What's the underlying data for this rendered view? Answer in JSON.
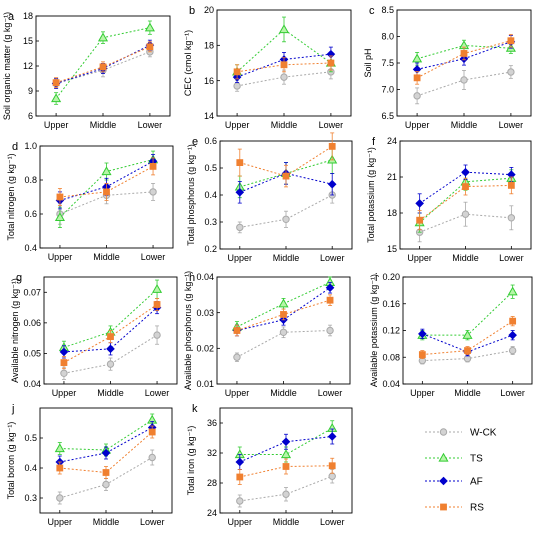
{
  "figure": {
    "categories": [
      "Upper",
      "Middle",
      "Lower"
    ],
    "legend": [
      {
        "name": "W-CK",
        "color": "#a9a9a9",
        "marker": "circle"
      },
      {
        "name": "TS",
        "color": "#33cc33",
        "marker": "triangle"
      },
      {
        "name": "AF",
        "color": "#0000cc",
        "marker": "diamond"
      },
      {
        "name": "RS",
        "color": "#f08030",
        "marker": "square"
      }
    ],
    "fill_colors": {
      "W-CK": "#d3d3d3",
      "TS": "#b6f5a8",
      "AF": "#0000cc",
      "RS": "#f08030"
    }
  },
  "chart_data": [
    {
      "type": "line",
      "panel": "a",
      "ylabel": "Soil organic matter (g kg⁻¹)",
      "categories": [
        "Upper",
        "Middle",
        "Lower"
      ],
      "ylim": [
        6,
        18
      ],
      "yticks": [
        "6",
        "9",
        "12",
        "15",
        "18"
      ],
      "series": [
        {
          "name": "W-CK",
          "values": [
            9.9,
            11.5,
            13.7
          ],
          "err": [
            0.5,
            0.8,
            0.6
          ]
        },
        {
          "name": "TS",
          "values": [
            8.1,
            15.4,
            16.6
          ],
          "err": [
            0.7,
            0.7,
            0.8
          ]
        },
        {
          "name": "AF",
          "values": [
            9.9,
            11.7,
            14.5
          ],
          "err": [
            0.6,
            0.6,
            0.6
          ]
        },
        {
          "name": "RS",
          "values": [
            10.0,
            11.9,
            14.3
          ],
          "err": [
            0.6,
            0.6,
            0.6
          ]
        }
      ]
    },
    {
      "type": "line",
      "panel": "b",
      "ylabel": "CEC (cmol kg⁻¹)",
      "categories": [
        "Upper",
        "Middle",
        "Lower"
      ],
      "ylim": [
        14,
        20
      ],
      "yticks": [
        "14",
        "16",
        "18",
        "20"
      ],
      "series": [
        {
          "name": "W-CK",
          "values": [
            15.7,
            16.2,
            16.5
          ],
          "err": [
            0.3,
            0.4,
            0.4
          ]
        },
        {
          "name": "TS",
          "values": [
            16.5,
            18.9,
            17.0
          ],
          "err": [
            0.4,
            0.7,
            0.5
          ]
        },
        {
          "name": "AF",
          "values": [
            16.2,
            17.2,
            17.5
          ],
          "err": [
            0.3,
            0.4,
            0.4
          ]
        },
        {
          "name": "RS",
          "values": [
            16.5,
            16.9,
            17.0
          ],
          "err": [
            0.4,
            0.4,
            0.4
          ]
        }
      ]
    },
    {
      "type": "line",
      "panel": "c",
      "ylabel": "Soil pH",
      "categories": [
        "Upper",
        "Middle",
        "Lower"
      ],
      "ylim": [
        6.5,
        8.5
      ],
      "yticks": [
        "6.5",
        "7.0",
        "7.5",
        "8.0",
        "8.5"
      ],
      "series": [
        {
          "name": "W-CK",
          "values": [
            6.88,
            7.18,
            7.33
          ],
          "err": [
            0.15,
            0.18,
            0.12
          ]
        },
        {
          "name": "TS",
          "values": [
            7.58,
            7.83,
            7.78
          ],
          "err": [
            0.12,
            0.1,
            0.1
          ]
        },
        {
          "name": "AF",
          "values": [
            7.38,
            7.58,
            7.9
          ],
          "err": [
            0.12,
            0.12,
            0.12
          ]
        },
        {
          "name": "RS",
          "values": [
            7.22,
            7.68,
            7.92
          ],
          "err": [
            0.12,
            0.12,
            0.12
          ]
        }
      ]
    },
    {
      "type": "line",
      "panel": "d",
      "ylabel": "Total nitrogen (g kg⁻¹)",
      "categories": [
        "Upper",
        "Middle",
        "Lower"
      ],
      "ylim": [
        0.4,
        1.0
      ],
      "yticks": [
        "0.4",
        "0.6",
        "0.8",
        "1.0"
      ],
      "series": [
        {
          "name": "W-CK",
          "values": [
            0.6,
            0.71,
            0.73
          ],
          "err": [
            0.06,
            0.05,
            0.05
          ]
        },
        {
          "name": "TS",
          "values": [
            0.58,
            0.85,
            0.92
          ],
          "err": [
            0.06,
            0.05,
            0.05
          ]
        },
        {
          "name": "AF",
          "values": [
            0.68,
            0.76,
            0.91
          ],
          "err": [
            0.05,
            0.05,
            0.04
          ]
        },
        {
          "name": "RS",
          "values": [
            0.7,
            0.73,
            0.88
          ],
          "err": [
            0.05,
            0.05,
            0.05
          ]
        }
      ]
    },
    {
      "type": "line",
      "panel": "e",
      "ylabel": "Total phosphorus (g kg⁻¹)",
      "categories": [
        "Upper",
        "Middle",
        "Lower"
      ],
      "ylim": [
        0.2,
        0.6
      ],
      "yticks": [
        "0.2",
        "0.3",
        "0.4",
        "0.5",
        "0.6"
      ],
      "series": [
        {
          "name": "W-CK",
          "values": [
            0.28,
            0.31,
            0.4
          ],
          "err": [
            0.02,
            0.03,
            0.03
          ]
        },
        {
          "name": "TS",
          "values": [
            0.43,
            0.48,
            0.53
          ],
          "err": [
            0.04,
            0.04,
            0.05
          ]
        },
        {
          "name": "AF",
          "values": [
            0.41,
            0.48,
            0.44
          ],
          "err": [
            0.04,
            0.04,
            0.04
          ]
        },
        {
          "name": "RS",
          "values": [
            0.52,
            0.47,
            0.58
          ],
          "err": [
            0.05,
            0.04,
            0.05
          ]
        }
      ]
    },
    {
      "type": "line",
      "panel": "f",
      "ylabel": "Total potassium (g kg⁻¹)",
      "categories": [
        "Upper",
        "Middle",
        "Lower"
      ],
      "ylim": [
        15,
        24
      ],
      "yticks": [
        "15",
        "18",
        "21",
        "24"
      ],
      "series": [
        {
          "name": "W-CK",
          "values": [
            16.4,
            17.9,
            17.6
          ],
          "err": [
            0.8,
            1.0,
            1.0
          ]
        },
        {
          "name": "TS",
          "values": [
            17.2,
            20.6,
            20.9
          ],
          "err": [
            0.8,
            0.7,
            0.7
          ]
        },
        {
          "name": "AF",
          "values": [
            18.8,
            21.4,
            21.2
          ],
          "err": [
            0.8,
            0.6,
            0.6
          ]
        },
        {
          "name": "RS",
          "values": [
            17.4,
            20.2,
            20.3
          ],
          "err": [
            0.8,
            0.7,
            0.7
          ]
        }
      ]
    },
    {
      "type": "line",
      "panel": "g",
      "ylabel": "Available nitrogen (g kg⁻¹)",
      "categories": [
        "Upper",
        "Middle",
        "Lower"
      ],
      "ylim": [
        0.04,
        0.075
      ],
      "yticks": [
        "0.04",
        "0.05",
        "0.06",
        "0.07"
      ],
      "series": [
        {
          "name": "W-CK",
          "values": [
            0.0435,
            0.0465,
            0.056
          ],
          "err": [
            0.002,
            0.002,
            0.003
          ]
        },
        {
          "name": "TS",
          "values": [
            0.052,
            0.057,
            0.071
          ],
          "err": [
            0.002,
            0.002,
            0.003
          ]
        },
        {
          "name": "AF",
          "values": [
            0.0505,
            0.0515,
            0.065
          ],
          "err": [
            0.002,
            0.002,
            0.002
          ]
        },
        {
          "name": "RS",
          "values": [
            0.047,
            0.0555,
            0.066
          ],
          "err": [
            0.002,
            0.002,
            0.002
          ]
        }
      ]
    },
    {
      "type": "line",
      "panel": "h",
      "ylabel": "Available phosphorus (g kg⁻¹)",
      "categories": [
        "Upper",
        "Middle",
        "Lower"
      ],
      "ylim": [
        0.01,
        0.04
      ],
      "yticks": [
        "0.01",
        "0.02",
        "0.03",
        "0.04"
      ],
      "series": [
        {
          "name": "W-CK",
          "values": [
            0.0175,
            0.0245,
            0.025
          ],
          "err": [
            0.0012,
            0.0015,
            0.0015
          ]
        },
        {
          "name": "TS",
          "values": [
            0.026,
            0.0325,
            0.0385
          ],
          "err": [
            0.0015,
            0.0015,
            0.0015
          ]
        },
        {
          "name": "AF",
          "values": [
            0.025,
            0.028,
            0.037
          ],
          "err": [
            0.0015,
            0.0015,
            0.0015
          ]
        },
        {
          "name": "RS",
          "values": [
            0.025,
            0.0295,
            0.0335
          ],
          "err": [
            0.0015,
            0.0015,
            0.0015
          ]
        }
      ]
    },
    {
      "type": "line",
      "panel": "i",
      "ylabel": "Available potassium (g kg⁻¹)",
      "categories": [
        "Upper",
        "Middle",
        "Lower"
      ],
      "ylim": [
        0.04,
        0.2
      ],
      "yticks": [
        "0.04",
        "0.08",
        "0.12",
        "0.16",
        "0.20"
      ],
      "series": [
        {
          "name": "W-CK",
          "values": [
            0.075,
            0.078,
            0.09
          ],
          "err": [
            0.005,
            0.005,
            0.006
          ]
        },
        {
          "name": "TS",
          "values": [
            0.113,
            0.113,
            0.178
          ],
          "err": [
            0.007,
            0.007,
            0.01
          ]
        },
        {
          "name": "AF",
          "values": [
            0.115,
            0.088,
            0.113
          ],
          "err": [
            0.007,
            0.006,
            0.007
          ]
        },
        {
          "name": "RS",
          "values": [
            0.084,
            0.09,
            0.134
          ],
          "err": [
            0.006,
            0.006,
            0.007
          ]
        }
      ]
    },
    {
      "type": "line",
      "panel": "j",
      "ylabel": "Total boron (g kg⁻¹)",
      "categories": [
        "Upper",
        "Middle",
        "Lower"
      ],
      "ylim": [
        0.25,
        0.6
      ],
      "yticks": [
        "0.3",
        "0.4",
        "0.5"
      ],
      "series": [
        {
          "name": "W-CK",
          "values": [
            0.3,
            0.345,
            0.435
          ],
          "err": [
            0.02,
            0.02,
            0.025
          ]
        },
        {
          "name": "TS",
          "values": [
            0.465,
            0.46,
            0.56
          ],
          "err": [
            0.02,
            0.02,
            0.02
          ]
        },
        {
          "name": "AF",
          "values": [
            0.42,
            0.45,
            0.535
          ],
          "err": [
            0.02,
            0.02,
            0.02
          ]
        },
        {
          "name": "RS",
          "values": [
            0.4,
            0.385,
            0.52
          ],
          "err": [
            0.02,
            0.02,
            0.02
          ]
        }
      ]
    },
    {
      "type": "line",
      "panel": "k",
      "ylabel": "Total iron (g kg⁻¹)",
      "categories": [
        "Upper",
        "Middle",
        "Lower"
      ],
      "ylim": [
        24,
        38
      ],
      "yticks": [
        "24",
        "28",
        "32",
        "36"
      ],
      "series": [
        {
          "name": "W-CK",
          "values": [
            25.6,
            26.5,
            28.9
          ],
          "err": [
            0.8,
            0.9,
            0.9
          ]
        },
        {
          "name": "TS",
          "values": [
            31.8,
            31.8,
            35.3
          ],
          "err": [
            1.0,
            1.0,
            1.0
          ]
        },
        {
          "name": "AF",
          "values": [
            30.8,
            33.5,
            34.2
          ],
          "err": [
            1.0,
            1.0,
            1.0
          ]
        },
        {
          "name": "RS",
          "values": [
            28.8,
            30.2,
            30.3
          ],
          "err": [
            1.0,
            1.0,
            1.0
          ]
        }
      ]
    }
  ]
}
